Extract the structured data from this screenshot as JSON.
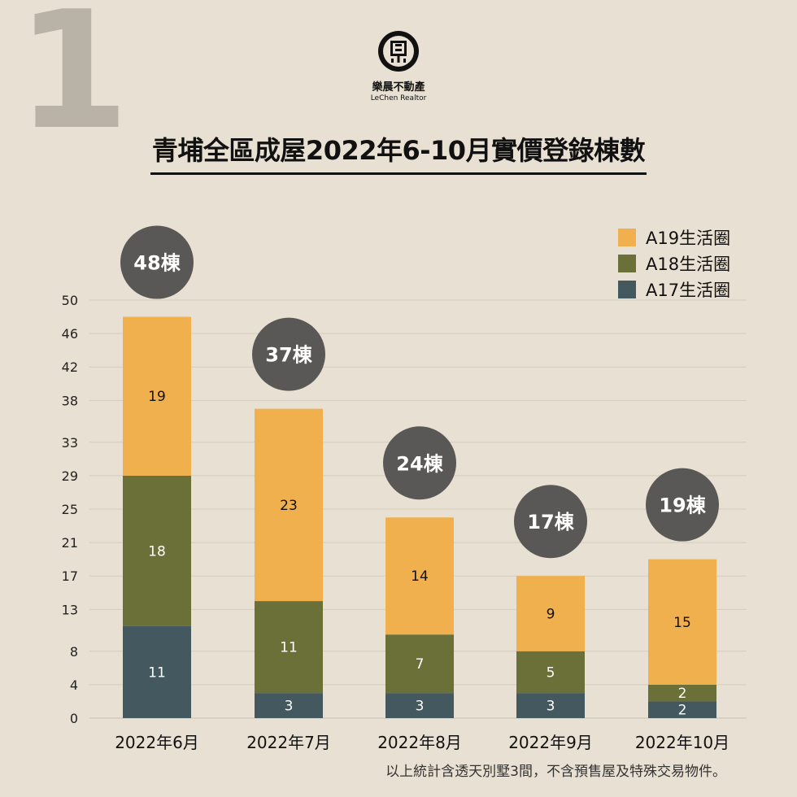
{
  "page_number": "1",
  "brand": {
    "name": "樂晨不動產",
    "subtitle": "LeChen Realtor"
  },
  "footnote": "以上統計含透天別墅3間，不含預售屋及特殊交易物件。",
  "colors": {
    "background": "#e8e0d2",
    "A19": "#f0b04e",
    "A18": "#6b7038",
    "A17": "#44595f",
    "total_bubble": "#5a5856"
  },
  "chart_data": {
    "type": "bar",
    "stacked": true,
    "title": "青埔全區成屋2022年6-10月實價登錄棟數",
    "categories": [
      "2022年6月",
      "2022年7月",
      "2022年8月",
      "2022年9月",
      "2022年10月"
    ],
    "series": [
      {
        "name": "A17生活圈",
        "values": [
          11,
          3,
          3,
          3,
          2
        ]
      },
      {
        "name": "A18生活圈",
        "values": [
          18,
          11,
          7,
          5,
          2
        ]
      },
      {
        "name": "A19生活圈",
        "values": [
          19,
          23,
          14,
          9,
          15
        ]
      }
    ],
    "totals": [
      "48棟",
      "37棟",
      "24棟",
      "17棟",
      "19棟"
    ],
    "legend_order": [
      "A19生活圈",
      "A18生活圈",
      "A17生活圈"
    ],
    "yticks": [
      0,
      4,
      8,
      13,
      17,
      21,
      25,
      29,
      33,
      38,
      42,
      46,
      50
    ],
    "ylim": [
      0,
      50
    ],
    "grid": true,
    "legend_position": "top-right"
  }
}
